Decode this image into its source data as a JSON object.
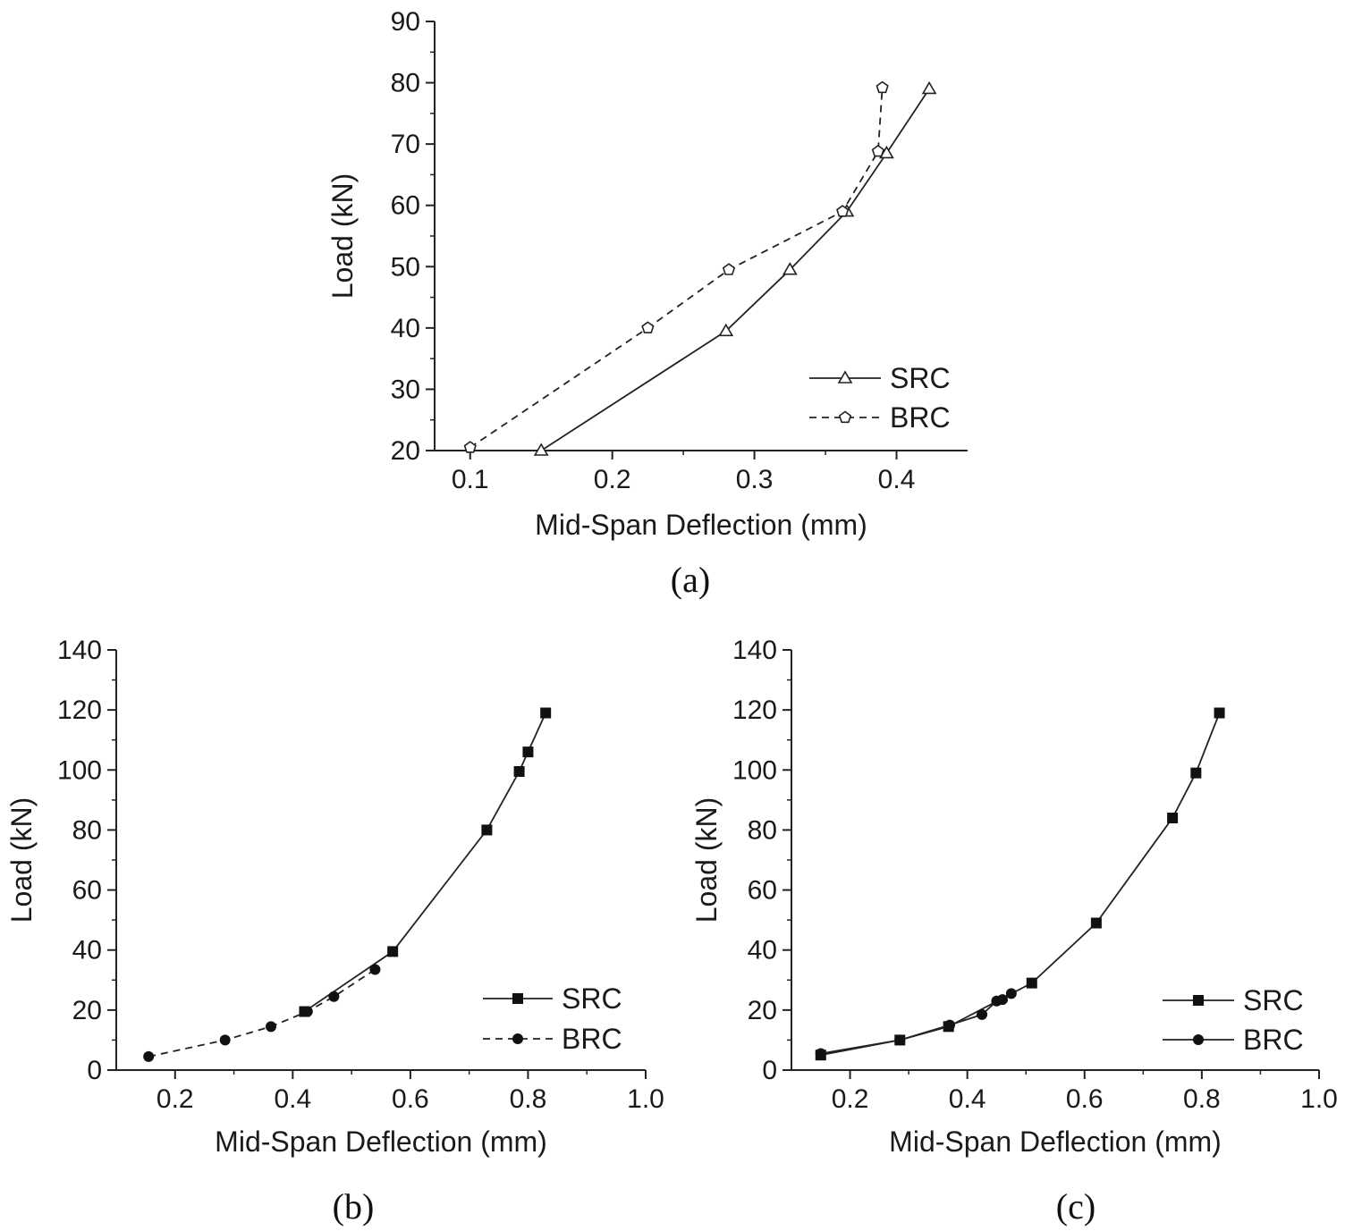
{
  "chart_data": [
    {
      "id": "a",
      "type": "line",
      "caption": "(a)",
      "xlabel": "Mid-Span Deflection (mm)",
      "ylabel": "Load (kN)",
      "xlim": [
        0.075,
        0.45
      ],
      "ylim": [
        20,
        90
      ],
      "xticks": [
        0.1,
        0.2,
        0.3,
        0.4
      ],
      "xtick_labels": [
        "0.1",
        "0.2",
        "0.3",
        "0.4"
      ],
      "yticks": [
        20,
        30,
        40,
        50,
        60,
        70,
        80,
        90
      ],
      "ytick_labels": [
        "20",
        "30",
        "40",
        "50",
        "60",
        "70",
        "80",
        "90"
      ],
      "legend_position": "bottom-right",
      "series": [
        {
          "name": "SRC",
          "line": "solid",
          "marker": "open-triangle",
          "x": [
            0.15,
            0.28,
            0.325,
            0.365,
            0.393,
            0.423
          ],
          "y": [
            20,
            39.5,
            49.5,
            59,
            68.5,
            79
          ]
        },
        {
          "name": "BRC",
          "line": "dashed",
          "marker": "open-pentagon",
          "x": [
            0.1,
            0.225,
            0.282,
            0.362,
            0.387,
            0.39
          ],
          "y": [
            20.5,
            40,
            49.5,
            59,
            68.8,
            79.2
          ]
        }
      ]
    },
    {
      "id": "b",
      "type": "line",
      "caption": "(b)",
      "xlabel": "Mid-Span Deflection (mm)",
      "ylabel": "Load (kN)",
      "xlim": [
        0.1,
        1.0
      ],
      "ylim": [
        0,
        140
      ],
      "xticks": [
        0.2,
        0.4,
        0.6,
        0.8,
        1.0
      ],
      "xtick_labels": [
        "0.2",
        "0.4",
        "0.6",
        "0.8",
        "1.0"
      ],
      "yticks": [
        0,
        20,
        40,
        60,
        80,
        100,
        120,
        140
      ],
      "ytick_labels": [
        "0",
        "20",
        "40",
        "60",
        "80",
        "100",
        "120",
        "140"
      ],
      "legend_position": "bottom-right",
      "series": [
        {
          "name": "SRC",
          "line": "solid",
          "marker": "filled-square",
          "x": [
            0.42,
            0.57,
            0.73,
            0.785,
            0.8,
            0.83
          ],
          "y": [
            19.5,
            39.5,
            80,
            99.5,
            106,
            119
          ]
        },
        {
          "name": "BRC",
          "line": "dashed",
          "marker": "filled-circle",
          "x": [
            0.155,
            0.285,
            0.363,
            0.425,
            0.47,
            0.54
          ],
          "y": [
            4.5,
            10,
            14.5,
            19.5,
            24.5,
            33.5
          ]
        }
      ]
    },
    {
      "id": "c",
      "type": "line",
      "caption": "(c)",
      "xlabel": "Mid-Span Deflection (mm)",
      "ylabel": "Load (kN)",
      "xlim": [
        0.1,
        1.0
      ],
      "ylim": [
        0,
        140
      ],
      "xticks": [
        0.2,
        0.4,
        0.6,
        0.8,
        1.0
      ],
      "xtick_labels": [
        "0.2",
        "0.4",
        "0.6",
        "0.8",
        "1.0"
      ],
      "yticks": [
        0,
        20,
        40,
        60,
        80,
        100,
        120,
        140
      ],
      "ytick_labels": [
        "0",
        "20",
        "40",
        "60",
        "80",
        "100",
        "120",
        "140"
      ],
      "legend_position": "bottom-right",
      "series": [
        {
          "name": "SRC",
          "line": "solid",
          "marker": "filled-square",
          "x": [
            0.15,
            0.285,
            0.368,
            0.51,
            0.62,
            0.75,
            0.79,
            0.83
          ],
          "y": [
            5,
            10,
            14.5,
            29,
            49,
            84,
            99,
            119
          ]
        },
        {
          "name": "BRC",
          "line": "solid",
          "marker": "filled-circle",
          "x": [
            0.15,
            0.285,
            0.37,
            0.425,
            0.45,
            0.46,
            0.475
          ],
          "y": [
            5.5,
            10,
            15,
            18.5,
            23,
            23.5,
            25.5
          ]
        }
      ]
    }
  ]
}
